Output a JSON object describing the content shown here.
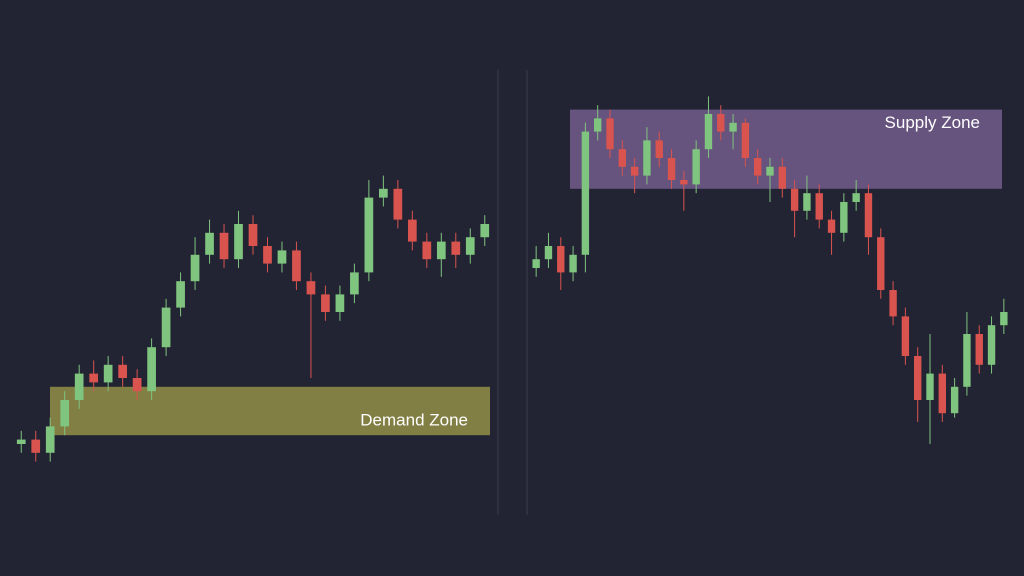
{
  "chart_data": [
    {
      "type": "candlestick",
      "up_color": "#7fc47f",
      "down_color": "#d9534f",
      "ylim": [
        0,
        100
      ],
      "zone": {
        "label": "Demand Zone",
        "low": 17,
        "high": 28,
        "color": "#b5b150"
      },
      "open": [
        15,
        16,
        13,
        19,
        25,
        31,
        29,
        33,
        30,
        27,
        37,
        46,
        52,
        58,
        63,
        57,
        65,
        60,
        56,
        59,
        52,
        49,
        45,
        49,
        54,
        71,
        73,
        66,
        61,
        57,
        61,
        58,
        62
      ],
      "high": [
        18,
        18,
        21,
        27,
        33,
        34,
        35,
        35,
        32,
        39,
        48,
        54,
        62,
        66,
        65,
        68,
        67,
        62,
        61,
        61,
        54,
        51,
        51,
        56,
        75,
        76,
        75,
        68,
        63,
        63,
        63,
        64,
        67
      ],
      "low": [
        13,
        11,
        11,
        17,
        23,
        27,
        27,
        28,
        25,
        25,
        35,
        44,
        50,
        56,
        55,
        55,
        58,
        54,
        54,
        50,
        30,
        43,
        43,
        47,
        52,
        69,
        64,
        59,
        55,
        53,
        55,
        56,
        60
      ],
      "close": [
        16,
        13,
        19,
        25,
        31,
        29,
        33,
        30,
        27,
        37,
        46,
        52,
        58,
        63,
        57,
        65,
        60,
        56,
        59,
        52,
        49,
        45,
        49,
        54,
        71,
        73,
        66,
        61,
        57,
        61,
        58,
        62,
        65
      ]
    },
    {
      "type": "candlestick",
      "up_color": "#7fc47f",
      "down_color": "#d9534f",
      "ylim": [
        0,
        100
      ],
      "zone": {
        "label": "Supply Zone",
        "low": 73,
        "high": 91,
        "color": "#8a6fa8"
      },
      "open": [
        55,
        57,
        60,
        54,
        58,
        86,
        89,
        82,
        78,
        76,
        84,
        80,
        75,
        74,
        82,
        90,
        86,
        88,
        80,
        76,
        78,
        73,
        68,
        72,
        66,
        63,
        70,
        72,
        62,
        50,
        44,
        35,
        25,
        31,
        22,
        28,
        40,
        33,
        42
      ],
      "high": [
        60,
        63,
        62,
        60,
        88,
        92,
        91,
        84,
        80,
        87,
        86,
        82,
        77,
        84,
        94,
        92,
        90,
        89,
        82,
        80,
        80,
        75,
        76,
        74,
        68,
        72,
        75,
        74,
        64,
        52,
        46,
        37,
        40,
        33,
        30,
        45,
        42,
        44,
        48
      ],
      "low": [
        53,
        55,
        50,
        52,
        54,
        84,
        80,
        76,
        72,
        74,
        78,
        73,
        68,
        72,
        80,
        84,
        82,
        78,
        74,
        70,
        71,
        62,
        66,
        64,
        58,
        61,
        68,
        58,
        48,
        42,
        33,
        20,
        15,
        20,
        21,
        26,
        31,
        31,
        40
      ],
      "close": [
        57,
        60,
        54,
        58,
        86,
        89,
        82,
        78,
        76,
        84,
        80,
        75,
        74,
        82,
        90,
        86,
        88,
        80,
        76,
        78,
        73,
        68,
        72,
        66,
        63,
        70,
        72,
        62,
        50,
        44,
        35,
        25,
        31,
        22,
        28,
        40,
        33,
        42,
        45
      ]
    }
  ]
}
